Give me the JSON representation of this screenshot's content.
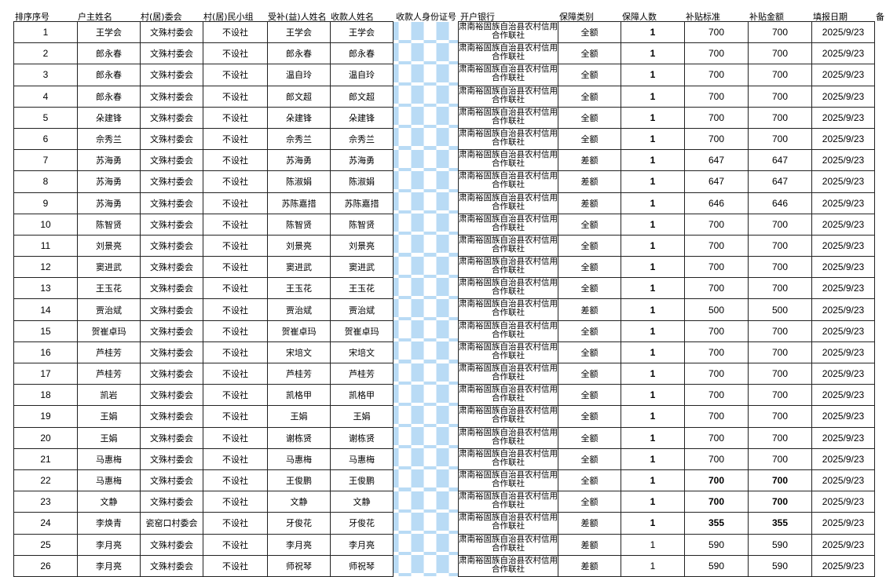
{
  "headers": [
    "排序序号",
    "户主姓名",
    "村(居)委会",
    "村(居)民小组",
    "受补(益)人姓名",
    "收款人姓名",
    "收款人身份证号",
    "开户银行",
    "保障类别",
    "保障人数",
    "补贴标准",
    "补贴金额",
    "填报日期",
    "备"
  ],
  "colors": {
    "redaction": "#b9dbf5",
    "border": "#222222"
  },
  "rows": [
    {
      "no": "1",
      "head": "王学会",
      "village": "文殊村委会",
      "group": "不设社",
      "beneficiary": "王学会",
      "payee": "王学会",
      "bank": "肃南裕固族自治县农村信用合作联社",
      "type": "全额",
      "count": "1",
      "standard": "700",
      "amount": "700",
      "date": "2025/9/23"
    },
    {
      "no": "2",
      "head": "郎永春",
      "village": "文殊村委会",
      "group": "不设社",
      "beneficiary": "郎永春",
      "payee": "郎永春",
      "bank": "肃南裕固族自治县农村信用合作联社",
      "type": "全额",
      "count": "1",
      "standard": "700",
      "amount": "700",
      "date": "2025/9/23"
    },
    {
      "no": "3",
      "head": "郎永春",
      "village": "文殊村委会",
      "group": "不设社",
      "beneficiary": "温自玲",
      "payee": "温自玲",
      "bank": "肃南裕固族自治县农村信用合作联社",
      "type": "全额",
      "count": "1",
      "standard": "700",
      "amount": "700",
      "date": "2025/9/23"
    },
    {
      "no": "4",
      "head": "郎永春",
      "village": "文殊村委会",
      "group": "不设社",
      "beneficiary": "郎文超",
      "payee": "郎文超",
      "bank": "肃南裕固族自治县农村信用合作联社",
      "type": "全额",
      "count": "1",
      "standard": "700",
      "amount": "700",
      "date": "2025/9/23"
    },
    {
      "no": "5",
      "head": "朵建锋",
      "village": "文殊村委会",
      "group": "不设社",
      "beneficiary": "朵建锋",
      "payee": "朵建锋",
      "bank": "肃南裕固族自治县农村信用合作联社",
      "type": "全额",
      "count": "1",
      "standard": "700",
      "amount": "700",
      "date": "2025/9/23"
    },
    {
      "no": "6",
      "head": "佘秀兰",
      "village": "文殊村委会",
      "group": "不设社",
      "beneficiary": "佘秀兰",
      "payee": "佘秀兰",
      "bank": "肃南裕固族自治县农村信用合作联社",
      "type": "全额",
      "count": "1",
      "standard": "700",
      "amount": "700",
      "date": "2025/9/23"
    },
    {
      "no": "7",
      "head": "苏海勇",
      "village": "文殊村委会",
      "group": "不设社",
      "beneficiary": "苏海勇",
      "payee": "苏海勇",
      "bank": "肃南裕固族自治县农村信用合作联社",
      "type": "差额",
      "count": "1",
      "standard": "647",
      "amount": "647",
      "date": "2025/9/23"
    },
    {
      "no": "8",
      "head": "苏海勇",
      "village": "文殊村委会",
      "group": "不设社",
      "beneficiary": "陈淑娟",
      "payee": "陈淑娟",
      "bank": "肃南裕固族自治县农村信用合作联社",
      "type": "差额",
      "count": "1",
      "standard": "647",
      "amount": "647",
      "date": "2025/9/23"
    },
    {
      "no": "9",
      "head": "苏海勇",
      "village": "文殊村委会",
      "group": "不设社",
      "beneficiary": "苏陈嘉措",
      "payee": "苏陈嘉措",
      "bank": "肃南裕固族自治县农村信用合作联社",
      "type": "差额",
      "count": "1",
      "standard": "646",
      "amount": "646",
      "date": "2025/9/23"
    },
    {
      "no": "10",
      "head": "陈智贤",
      "village": "文殊村委会",
      "group": "不设社",
      "beneficiary": "陈智贤",
      "payee": "陈智贤",
      "bank": "肃南裕固族自治县农村信用合作联社",
      "type": "全额",
      "count": "1",
      "standard": "700",
      "amount": "700",
      "date": "2025/9/23"
    },
    {
      "no": "11",
      "head": "刘景亮",
      "village": "文殊村委会",
      "group": "不设社",
      "beneficiary": "刘景亮",
      "payee": "刘景亮",
      "bank": "肃南裕固族自治县农村信用合作联社",
      "type": "全额",
      "count": "1",
      "standard": "700",
      "amount": "700",
      "date": "2025/9/23"
    },
    {
      "no": "12",
      "head": "窦进武",
      "village": "文殊村委会",
      "group": "不设社",
      "beneficiary": "窦进武",
      "payee": "窦进武",
      "bank": "肃南裕固族自治县农村信用合作联社",
      "type": "全额",
      "count": "1",
      "standard": "700",
      "amount": "700",
      "date": "2025/9/23"
    },
    {
      "no": "13",
      "head": "王玉花",
      "village": "文殊村委会",
      "group": "不设社",
      "beneficiary": "王玉花",
      "payee": "王玉花",
      "bank": "肃南裕固族自治县农村信用合作联社",
      "type": "全额",
      "count": "1",
      "standard": "700",
      "amount": "700",
      "date": "2025/9/23"
    },
    {
      "no": "14",
      "head": "贾治斌",
      "village": "文殊村委会",
      "group": "不设社",
      "beneficiary": "贾治斌",
      "payee": "贾治斌",
      "bank": "肃南裕固族自治县农村信用合作联社",
      "type": "差额",
      "count": "1",
      "standard": "500",
      "amount": "500",
      "date": "2025/9/23"
    },
    {
      "no": "15",
      "head": "贺崔卓玛",
      "village": "文殊村委会",
      "group": "不设社",
      "beneficiary": "贺崔卓玛",
      "payee": "贺崔卓玛",
      "bank": "肃南裕固族自治县农村信用合作联社",
      "type": "全额",
      "count": "1",
      "standard": "700",
      "amount": "700",
      "date": "2025/9/23"
    },
    {
      "no": "16",
      "head": "芦桂芳",
      "village": "文殊村委会",
      "group": "不设社",
      "beneficiary": "宋培文",
      "payee": "宋培文",
      "bank": "肃南裕固族自治县农村信用合作联社",
      "type": "全额",
      "count": "1",
      "standard": "700",
      "amount": "700",
      "date": "2025/9/23"
    },
    {
      "no": "17",
      "head": "芦桂芳",
      "village": "文殊村委会",
      "group": "不设社",
      "beneficiary": "芦桂芳",
      "payee": "芦桂芳",
      "bank": "肃南裕固族自治县农村信用合作联社",
      "type": "全额",
      "count": "1",
      "standard": "700",
      "amount": "700",
      "date": "2025/9/23"
    },
    {
      "no": "18",
      "head": "凯岩",
      "village": "文殊村委会",
      "group": "不设社",
      "beneficiary": "凯格甲",
      "payee": "凯格甲",
      "bank": "肃南裕固族自治县农村信用合作联社",
      "type": "全额",
      "count": "1",
      "standard": "700",
      "amount": "700",
      "date": "2025/9/23"
    },
    {
      "no": "19",
      "head": "王娟",
      "village": "文殊村委会",
      "group": "不设社",
      "beneficiary": "王娟",
      "payee": "王娟",
      "bank": "肃南裕固族自治县农村信用合作联社",
      "type": "全额",
      "count": "1",
      "standard": "700",
      "amount": "700",
      "date": "2025/9/23"
    },
    {
      "no": "20",
      "head": "王娟",
      "village": "文殊村委会",
      "group": "不设社",
      "beneficiary": "谢栋贤",
      "payee": "谢栋贤",
      "bank": "肃南裕固族自治县农村信用合作联社",
      "type": "全额",
      "count": "1",
      "standard": "700",
      "amount": "700",
      "date": "2025/9/23"
    },
    {
      "no": "21",
      "head": "马惠梅",
      "village": "文殊村委会",
      "group": "不设社",
      "beneficiary": "马惠梅",
      "payee": "马惠梅",
      "bank": "肃南裕固族自治县农村信用合作联社",
      "type": "全额",
      "count": "1",
      "standard": "700",
      "amount": "700",
      "date": "2025/9/23"
    },
    {
      "no": "22",
      "head": "马惠梅",
      "village": "文殊村委会",
      "group": "不设社",
      "beneficiary": "王俊鹏",
      "payee": "王俊鹏",
      "bank": "肃南裕固族自治县农村信用合作联社",
      "type": "全额",
      "count": "1",
      "standard": "700",
      "amount": "700",
      "date": "2025/9/23",
      "bold": true
    },
    {
      "no": "23",
      "head": "文静",
      "village": "文殊村委会",
      "group": "不设社",
      "beneficiary": "文静",
      "payee": "文静",
      "bank": "肃南裕固族自治县农村信用合作联社",
      "type": "全额",
      "count": "1",
      "standard": "700",
      "amount": "700",
      "date": "2025/9/23",
      "bold": true
    },
    {
      "no": "24",
      "head": "李焕青",
      "village": "瓷窑口村委会",
      "group": "不设社",
      "beneficiary": "牙俊花",
      "payee": "牙俊花",
      "bank": "肃南裕固族自治县农村信用合作联社",
      "type": "差额",
      "count": "1",
      "standard": "355",
      "amount": "355",
      "date": "2025/9/23",
      "bold": true
    },
    {
      "no": "25",
      "head": "李月亮",
      "village": "文殊村委会",
      "group": "不设社",
      "beneficiary": "李月亮",
      "payee": "李月亮",
      "bank": "肃南裕固族自治县农村信用合作联社",
      "type": "差额",
      "count": "1",
      "standard": "590",
      "amount": "590",
      "date": "2025/9/23"
    },
    {
      "no": "26",
      "head": "李月亮",
      "village": "文殊村委会",
      "group": "不设社",
      "beneficiary": "师祝琴",
      "payee": "师祝琴",
      "bank": "肃南裕固族自治县农村信用合作联社",
      "type": "差额",
      "count": "1",
      "standard": "590",
      "amount": "590",
      "date": "2025/9/23"
    }
  ]
}
